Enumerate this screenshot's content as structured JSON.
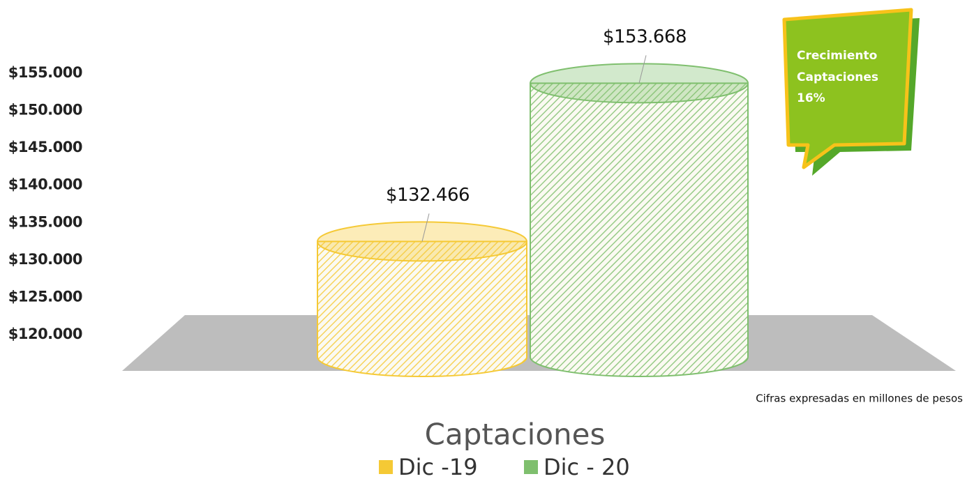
{
  "chart_data": {
    "type": "cylinder",
    "title": "Captaciones",
    "note": "Cifras expresadas en millones de pesos",
    "annotation": [
      "Crecimiento",
      "Captaciones",
      "16%"
    ],
    "categories": [
      null
    ],
    "series": [
      {
        "name": "Dic -19",
        "color": "#f5c935",
        "values": [
          132466
        ],
        "value_labels": [
          "$132.466"
        ]
      },
      {
        "name": "Dic - 20",
        "color": "#7fbf6e",
        "values": [
          153668
        ],
        "value_labels": [
          "$153.668"
        ]
      }
    ],
    "ylim": [
      117000,
      158000
    ],
    "yticks": [
      {
        "value": 120000,
        "label": "$120.000"
      },
      {
        "value": 125000,
        "label": "$125.000"
      },
      {
        "value": 130000,
        "label": "$130.000"
      },
      {
        "value": 135000,
        "label": "$135.000"
      },
      {
        "value": 140000,
        "label": "$140.000"
      },
      {
        "value": 145000,
        "label": "$145.000"
      },
      {
        "value": 150000,
        "label": "$150.000"
      },
      {
        "value": 155000,
        "label": "$155.000"
      }
    ],
    "grid": false,
    "legend": "bottom"
  }
}
